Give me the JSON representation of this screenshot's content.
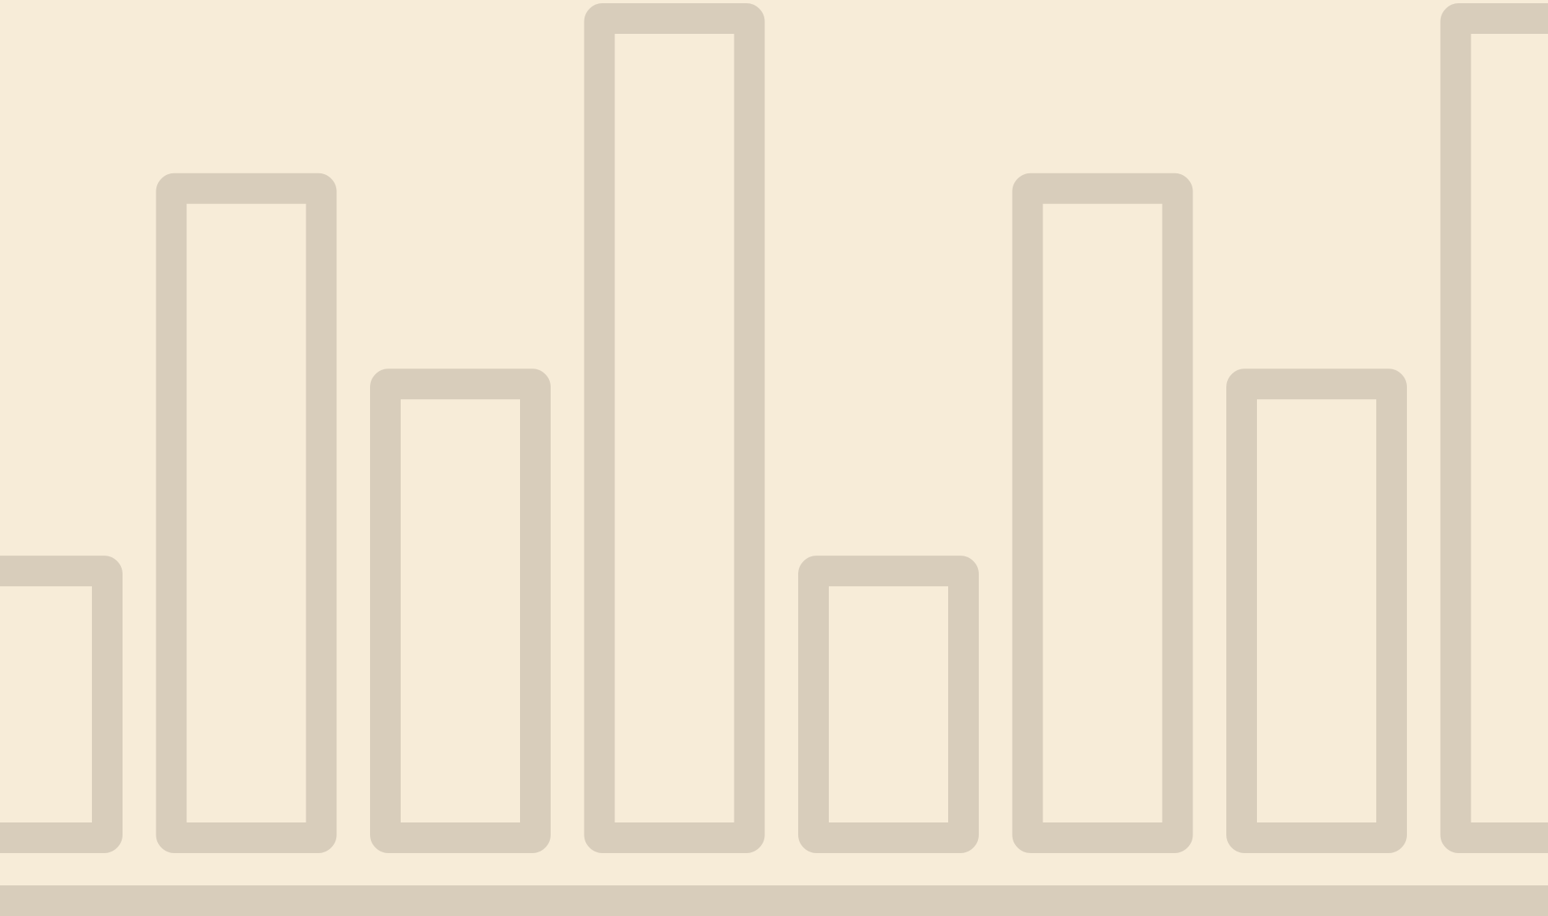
{
  "theme": {
    "background": "#f7ecd8",
    "stroke": "#d8cdbb"
  },
  "bars": [
    {
      "name": "bar-1",
      "level": 0.35
    },
    {
      "name": "bar-2",
      "level": 0.8
    },
    {
      "name": "bar-3",
      "level": 0.57
    },
    {
      "name": "bar-4",
      "level": 1.0
    },
    {
      "name": "bar-5",
      "level": 0.35
    },
    {
      "name": "bar-6",
      "level": 0.8
    },
    {
      "name": "bar-7",
      "level": 0.57
    },
    {
      "name": "bar-8",
      "level": 1.0
    }
  ]
}
